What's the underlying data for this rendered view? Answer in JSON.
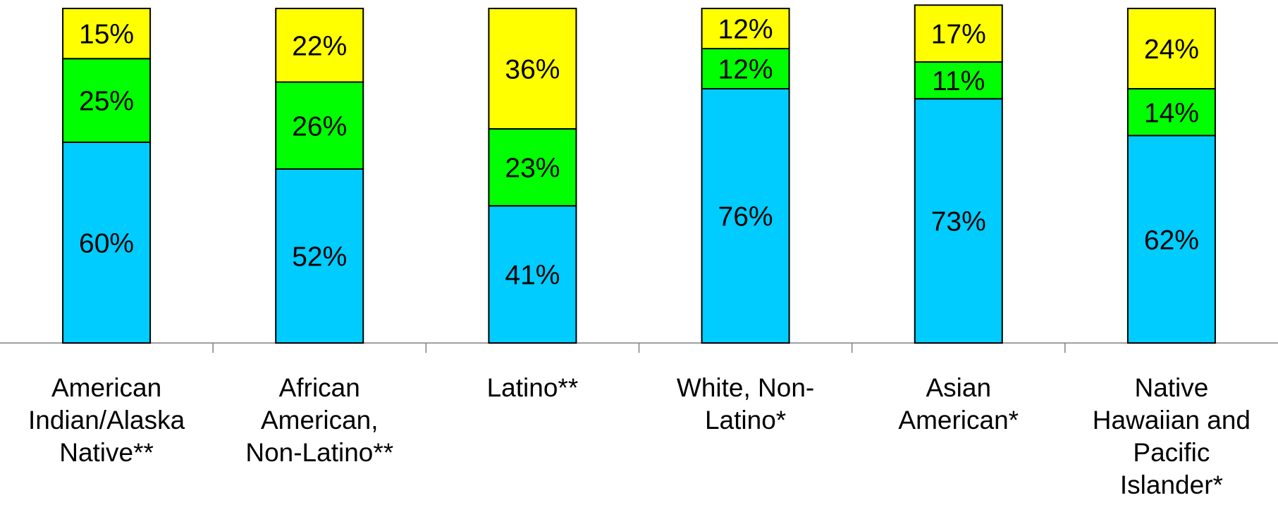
{
  "chart_data": {
    "type": "bar",
    "stacked": true,
    "percent_stacked": true,
    "categories": [
      [
        "American",
        "Indian/Alaska",
        "Native**"
      ],
      [
        "African",
        "American,",
        "Non-Latino**"
      ],
      [
        "Latino**"
      ],
      [
        "White, Non-",
        "Latino*"
      ],
      [
        "Asian",
        "American*"
      ],
      [
        "Native",
        "Hawaiian and",
        "Pacific",
        "Islander*"
      ]
    ],
    "series": [
      {
        "color": "#00ccff",
        "values": [
          60,
          52,
          41,
          76,
          73,
          62
        ]
      },
      {
        "color": "#00ff00",
        "values": [
          25,
          26,
          23,
          12,
          11,
          14
        ]
      },
      {
        "color": "#ffff00",
        "values": [
          15,
          22,
          36,
          12,
          17,
          24
        ]
      }
    ],
    "value_format": "{v}%",
    "ylim": [
      0,
      100
    ],
    "grid": false,
    "legend": "none",
    "title": "",
    "xlabel": "",
    "ylabel": ""
  }
}
